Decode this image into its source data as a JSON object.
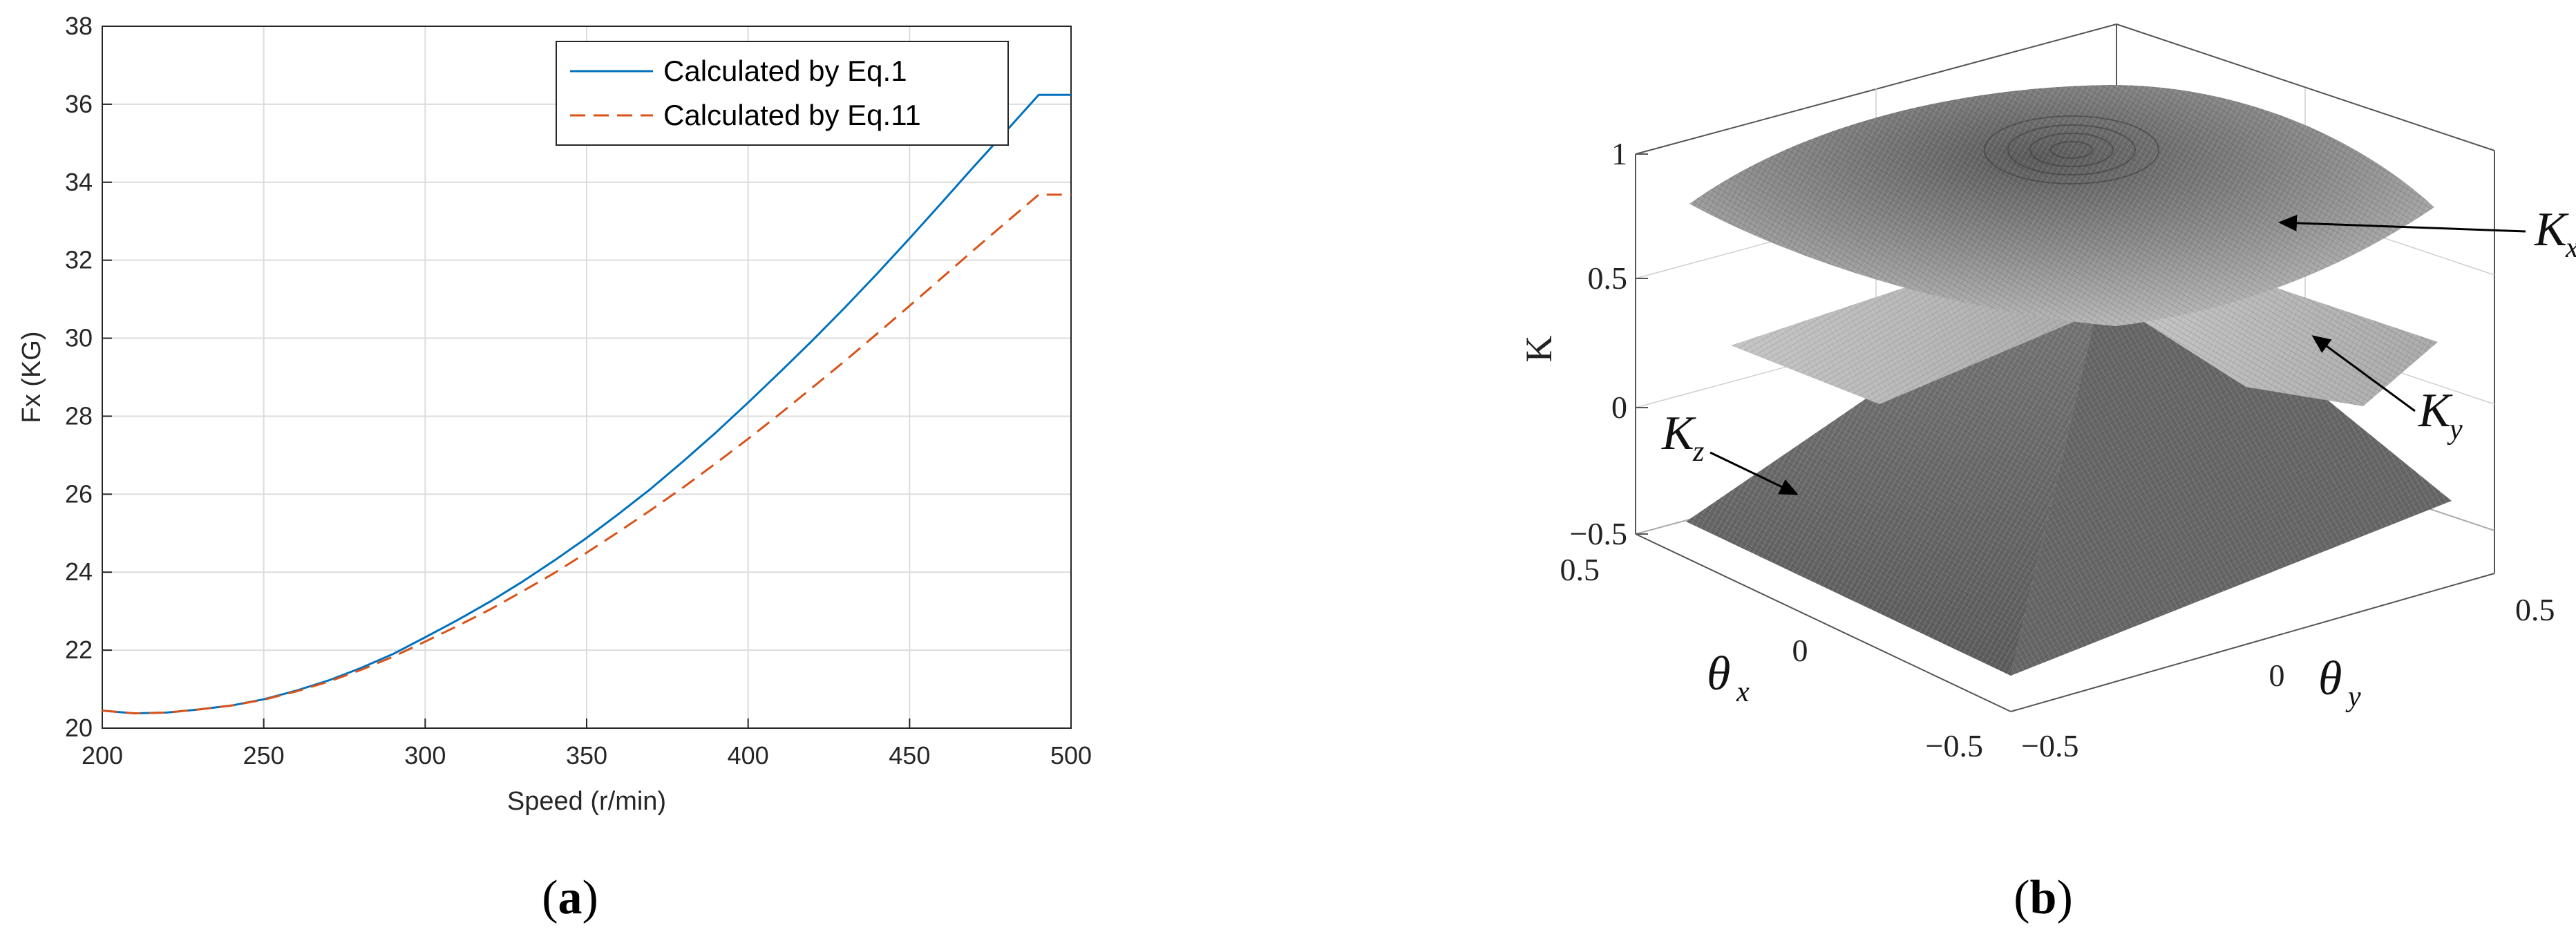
{
  "chart_data": [
    {
      "type": "line",
      "panel_label": "a",
      "xlabel": "Speed (r/min)",
      "ylabel": "Fx (KG)",
      "xlim": [
        200,
        500
      ],
      "ylim": [
        20,
        38
      ],
      "x_ticks": [
        200,
        250,
        300,
        350,
        400,
        450,
        500
      ],
      "y_ticks": [
        20,
        22,
        24,
        26,
        28,
        30,
        32,
        34,
        36,
        38
      ],
      "grid": true,
      "legend_position": "top-right",
      "x": [
        200,
        210,
        220,
        230,
        240,
        250,
        260,
        270,
        280,
        290,
        300,
        310,
        320,
        330,
        340,
        350,
        360,
        370,
        380,
        390,
        400,
        410,
        420,
        430,
        440,
        450,
        460,
        470,
        480,
        490,
        500
      ],
      "series": [
        {
          "name": "Calculated by Eq.1",
          "color": "#0072bd",
          "dash": "solid",
          "values": [
            20.45,
            20.38,
            20.4,
            20.48,
            20.58,
            20.74,
            20.96,
            21.22,
            21.54,
            21.9,
            22.33,
            22.77,
            23.24,
            23.75,
            24.3,
            24.88,
            25.5,
            26.15,
            26.85,
            27.58,
            28.35,
            29.14,
            29.95,
            30.79,
            31.66,
            32.56,
            33.48,
            34.41,
            35.32,
            36.24,
            36.24
          ]
        },
        {
          "name": "Calculated by Eq.11",
          "color": "#d95319",
          "dash": "dashed",
          "values": [
            20.45,
            20.38,
            20.4,
            20.48,
            20.58,
            20.73,
            20.94,
            21.19,
            21.49,
            21.83,
            22.22,
            22.62,
            23.04,
            23.5,
            23.98,
            24.5,
            25.04,
            25.6,
            26.18,
            26.79,
            27.42,
            28.07,
            28.74,
            29.42,
            30.12,
            30.83,
            31.55,
            32.27,
            32.98,
            33.68,
            33.68
          ]
        }
      ]
    },
    {
      "type": "surface3d",
      "panel_label": "b",
      "zlabel": "K",
      "x_axis_symbol": "θ",
      "x_axis_sub": "x",
      "y_axis_symbol": "θ",
      "y_axis_sub": "y",
      "z_ticks": [
        "1",
        "0.5",
        "0",
        "−0.5"
      ],
      "x_ticks": [
        "0.5",
        "0",
        "−0.5"
      ],
      "y_ticks": [
        "−0.5",
        "0",
        "0.5"
      ],
      "surfaces": [
        {
          "symbol": "K",
          "sub": "x"
        },
        {
          "symbol": "K",
          "sub": "y"
        },
        {
          "symbol": "K",
          "sub": "z"
        }
      ]
    }
  ],
  "captions": [
    {
      "open": "(",
      "letter": "a",
      "close": ")"
    },
    {
      "open": "(",
      "letter": "b",
      "close": ")"
    }
  ]
}
